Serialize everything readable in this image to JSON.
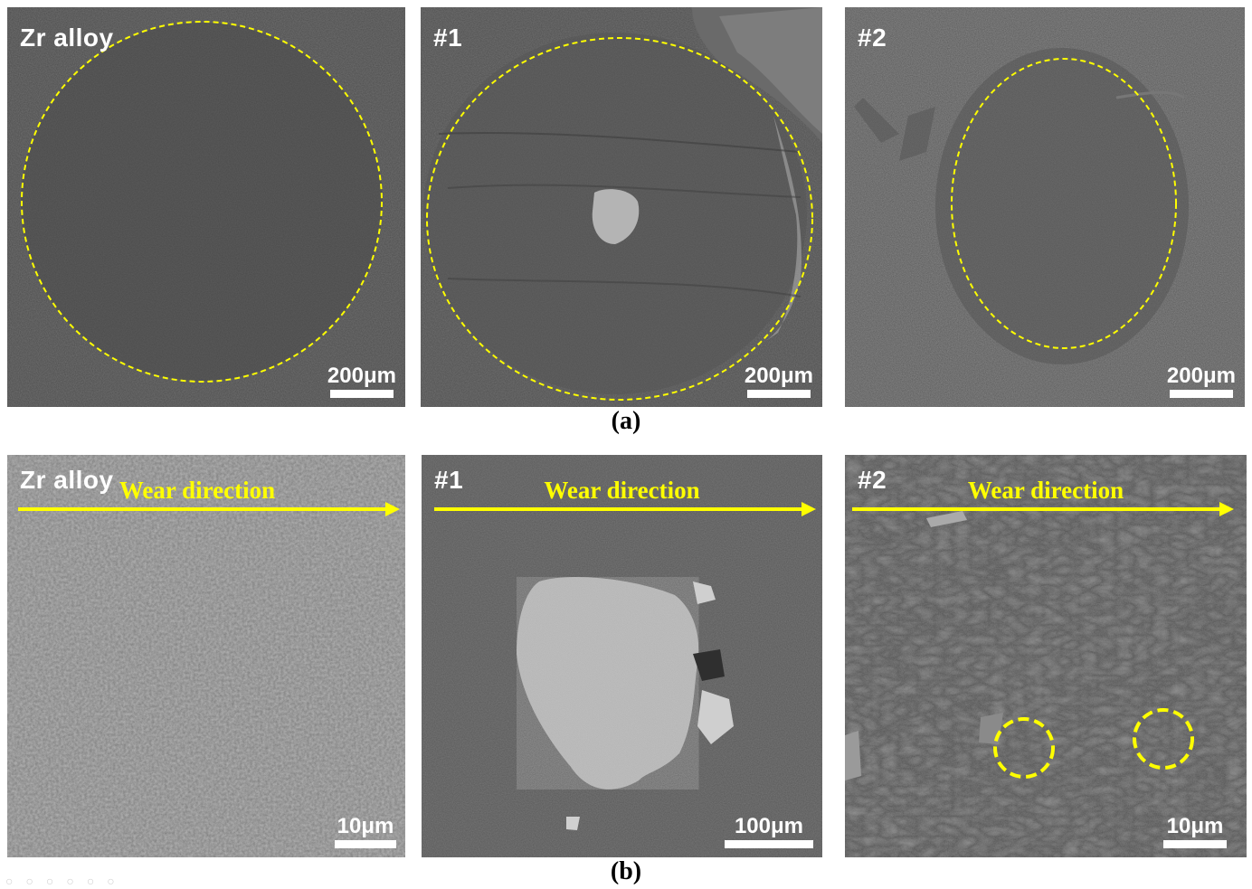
{
  "figure": {
    "row_a": {
      "caption": "(a)",
      "panels": [
        {
          "label": "Zr alloy",
          "scale": "200μm"
        },
        {
          "label": "#1",
          "scale": "200μm"
        },
        {
          "label": "#2",
          "scale": "200μm"
        }
      ]
    },
    "row_b": {
      "caption": "(b)",
      "panels": [
        {
          "label": "Zr alloy",
          "wear": "Wear direction",
          "scale": "10μm"
        },
        {
          "label": "#1",
          "wear": "Wear direction",
          "scale": "100μm"
        },
        {
          "label": "#2",
          "wear": "Wear direction",
          "scale": "10μm"
        }
      ]
    }
  },
  "colors": {
    "annotation": "#ffff00",
    "sem_dark": "#4a4a4a"
  }
}
